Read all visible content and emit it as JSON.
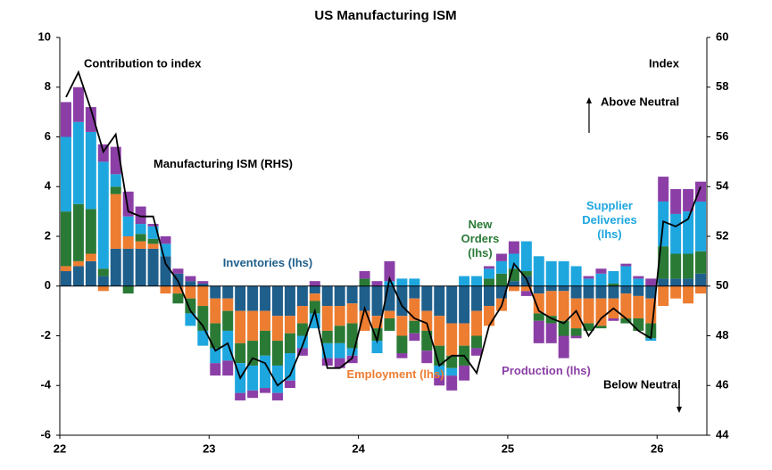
{
  "chart_data": {
    "type": "bar",
    "title": "US Manufacturing ISM",
    "y_label": "Contribution to index",
    "y2_label": "Index",
    "annotations": [
      "Above Neutral",
      "Below Neutral"
    ],
    "stacked": true,
    "categories": [
      "22",
      null,
      null,
      null,
      null,
      null,
      null,
      null,
      null,
      null,
      null,
      null,
      "23",
      null,
      null,
      null,
      null,
      null,
      null,
      null,
      null,
      null,
      null,
      null,
      "24",
      null,
      null,
      null,
      null,
      null,
      null,
      null,
      null,
      null,
      null,
      null,
      "25",
      null,
      null,
      null,
      null,
      null,
      null,
      null,
      null,
      null,
      null,
      null,
      "26",
      null,
      null,
      null
    ],
    "ylim": [
      -6,
      10
    ],
    "yticks": [
      -6,
      -4,
      -2,
      0,
      2,
      4,
      6,
      8,
      10
    ],
    "y2lim": [
      44,
      60
    ],
    "y2ticks": [
      44,
      46,
      48,
      50,
      52,
      54,
      56,
      58,
      60
    ],
    "series": [
      {
        "name": "Inventories (lhs)",
        "color": "#1f5f8c",
        "values": [
          0.6,
          0.8,
          1.0,
          0.4,
          1.5,
          1.5,
          1.5,
          1.5,
          1.2,
          0.5,
          0.2,
          0.1,
          -0.5,
          -0.5,
          -1.0,
          -1.0,
          -1.0,
          -1.2,
          -1.2,
          -0.8,
          -0.3,
          -0.8,
          -0.8,
          -0.7,
          -1.0,
          -1.2,
          -1.0,
          -1.2,
          -0.5,
          -1.0,
          -1.2,
          -1.5,
          -1.5,
          -1.0,
          -0.8,
          -0.5,
          0.2,
          0.4,
          -0.3,
          -0.2,
          -0.2,
          -0.5,
          -0.5,
          -0.5,
          -0.5,
          -0.3,
          -0.4,
          -0.5,
          0.3,
          0.3,
          0.3,
          0.5
        ]
      },
      {
        "name": "Employment (lhs)",
        "color": "#ed7d31",
        "values": [
          0.2,
          0.2,
          0.3,
          -0.2,
          2.2,
          0.5,
          0.3,
          0.2,
          -0.3,
          -0.3,
          -0.5,
          -0.8,
          -1.0,
          -0.5,
          -1.3,
          -1.2,
          -0.8,
          -1.0,
          -0.7,
          -0.7,
          -0.3,
          -1.0,
          -0.8,
          -0.8,
          -0.8,
          -0.5,
          -0.3,
          -0.8,
          -0.9,
          -0.8,
          -1.2,
          -1.3,
          -0.9,
          -1.0,
          -0.8,
          -0.5,
          -0.2,
          -0.2,
          -0.8,
          -1.0,
          -1.2,
          -1.2,
          -1.0,
          -1.1,
          -0.8,
          -1.0,
          -0.9,
          -1.0,
          -0.8,
          -0.5,
          -0.7,
          -0.3
        ]
      },
      {
        "name": "New Orders (lhs)",
        "color": "#2a7a36",
        "values": [
          2.2,
          2.3,
          1.8,
          0.3,
          0.3,
          -0.3,
          0.3,
          0.2,
          0.0,
          -0.4,
          -0.6,
          -1.0,
          -1.0,
          -0.8,
          -0.8,
          -1.0,
          -1.0,
          -1.0,
          -0.8,
          -0.5,
          -0.5,
          -0.5,
          -0.7,
          -1.0,
          0.3,
          -0.5,
          -0.5,
          -0.7,
          -0.5,
          -0.8,
          -0.8,
          -0.5,
          -0.8,
          -0.5,
          0.3,
          0.5,
          0.5,
          0.2,
          -0.3,
          -0.3,
          -0.6,
          -0.3,
          -0.3,
          -0.1,
          0.1,
          -0.2,
          -0.5,
          -0.6,
          1.3,
          1.0,
          1.0,
          0.9
        ]
      },
      {
        "name": "Supplier Deliveries (lhs)",
        "color": "#1ea6df",
        "values": [
          3.0,
          3.3,
          3.1,
          4.3,
          0.5,
          0.8,
          0.4,
          0.5,
          0.5,
          0.0,
          -0.5,
          -0.6,
          -0.6,
          -1.2,
          -1.2,
          -1.0,
          -1.3,
          -1.1,
          -1.1,
          -0.5,
          -0.6,
          -0.6,
          -0.6,
          -0.3,
          0.0,
          -0.5,
          0.2,
          0.3,
          0.3,
          0.0,
          -0.4,
          -0.3,
          0.4,
          0.4,
          0.4,
          0.5,
          0.6,
          1.2,
          1.2,
          1.0,
          1.0,
          0.8,
          0.3,
          0.5,
          0.5,
          0.8,
          0.3,
          -0.1,
          1.8,
          1.6,
          1.7,
          2.0
        ]
      },
      {
        "name": "Production (lhs)",
        "color": "#8b3fa6",
        "values": [
          1.4,
          1.4,
          1.0,
          0.7,
          1.1,
          1.0,
          0.7,
          0.1,
          0.3,
          0.2,
          0.2,
          0.1,
          -0.5,
          -0.6,
          -0.3,
          -0.3,
          -0.2,
          -0.3,
          -0.3,
          -0.3,
          0.2,
          -0.3,
          -0.4,
          -0.3,
          0.3,
          0.2,
          0.8,
          -0.2,
          -0.3,
          -0.5,
          -0.4,
          -0.6,
          -0.6,
          -0.3,
          0.1,
          0.3,
          0.5,
          -0.2,
          -0.9,
          -0.8,
          -0.9,
          -0.1,
          0.1,
          0.2,
          -0.1,
          0.1,
          0.1,
          0.3,
          1.0,
          1.0,
          0.9,
          0.8
        ]
      },
      {
        "name": "Manufacturing ISM (RHS)",
        "type": "line",
        "axis": "y2",
        "color": "#000000",
        "values": [
          57.6,
          58.6,
          57.1,
          55.4,
          56.1,
          53.0,
          52.8,
          52.8,
          50.9,
          50.2,
          49.0,
          48.4,
          47.4,
          47.7,
          46.3,
          47.1,
          46.9,
          46.0,
          46.4,
          47.6,
          49.0,
          46.7,
          46.7,
          47.1,
          49.1,
          47.8,
          50.3,
          49.2,
          48.7,
          48.5,
          46.8,
          47.2,
          47.2,
          46.5,
          48.4,
          49.2,
          50.9,
          50.3,
          49.0,
          48.7,
          48.5,
          49.0,
          48.0,
          48.7,
          49.1,
          48.7,
          48.2,
          47.9,
          52.6,
          52.4,
          52.7,
          54.0
        ]
      }
    ]
  }
}
